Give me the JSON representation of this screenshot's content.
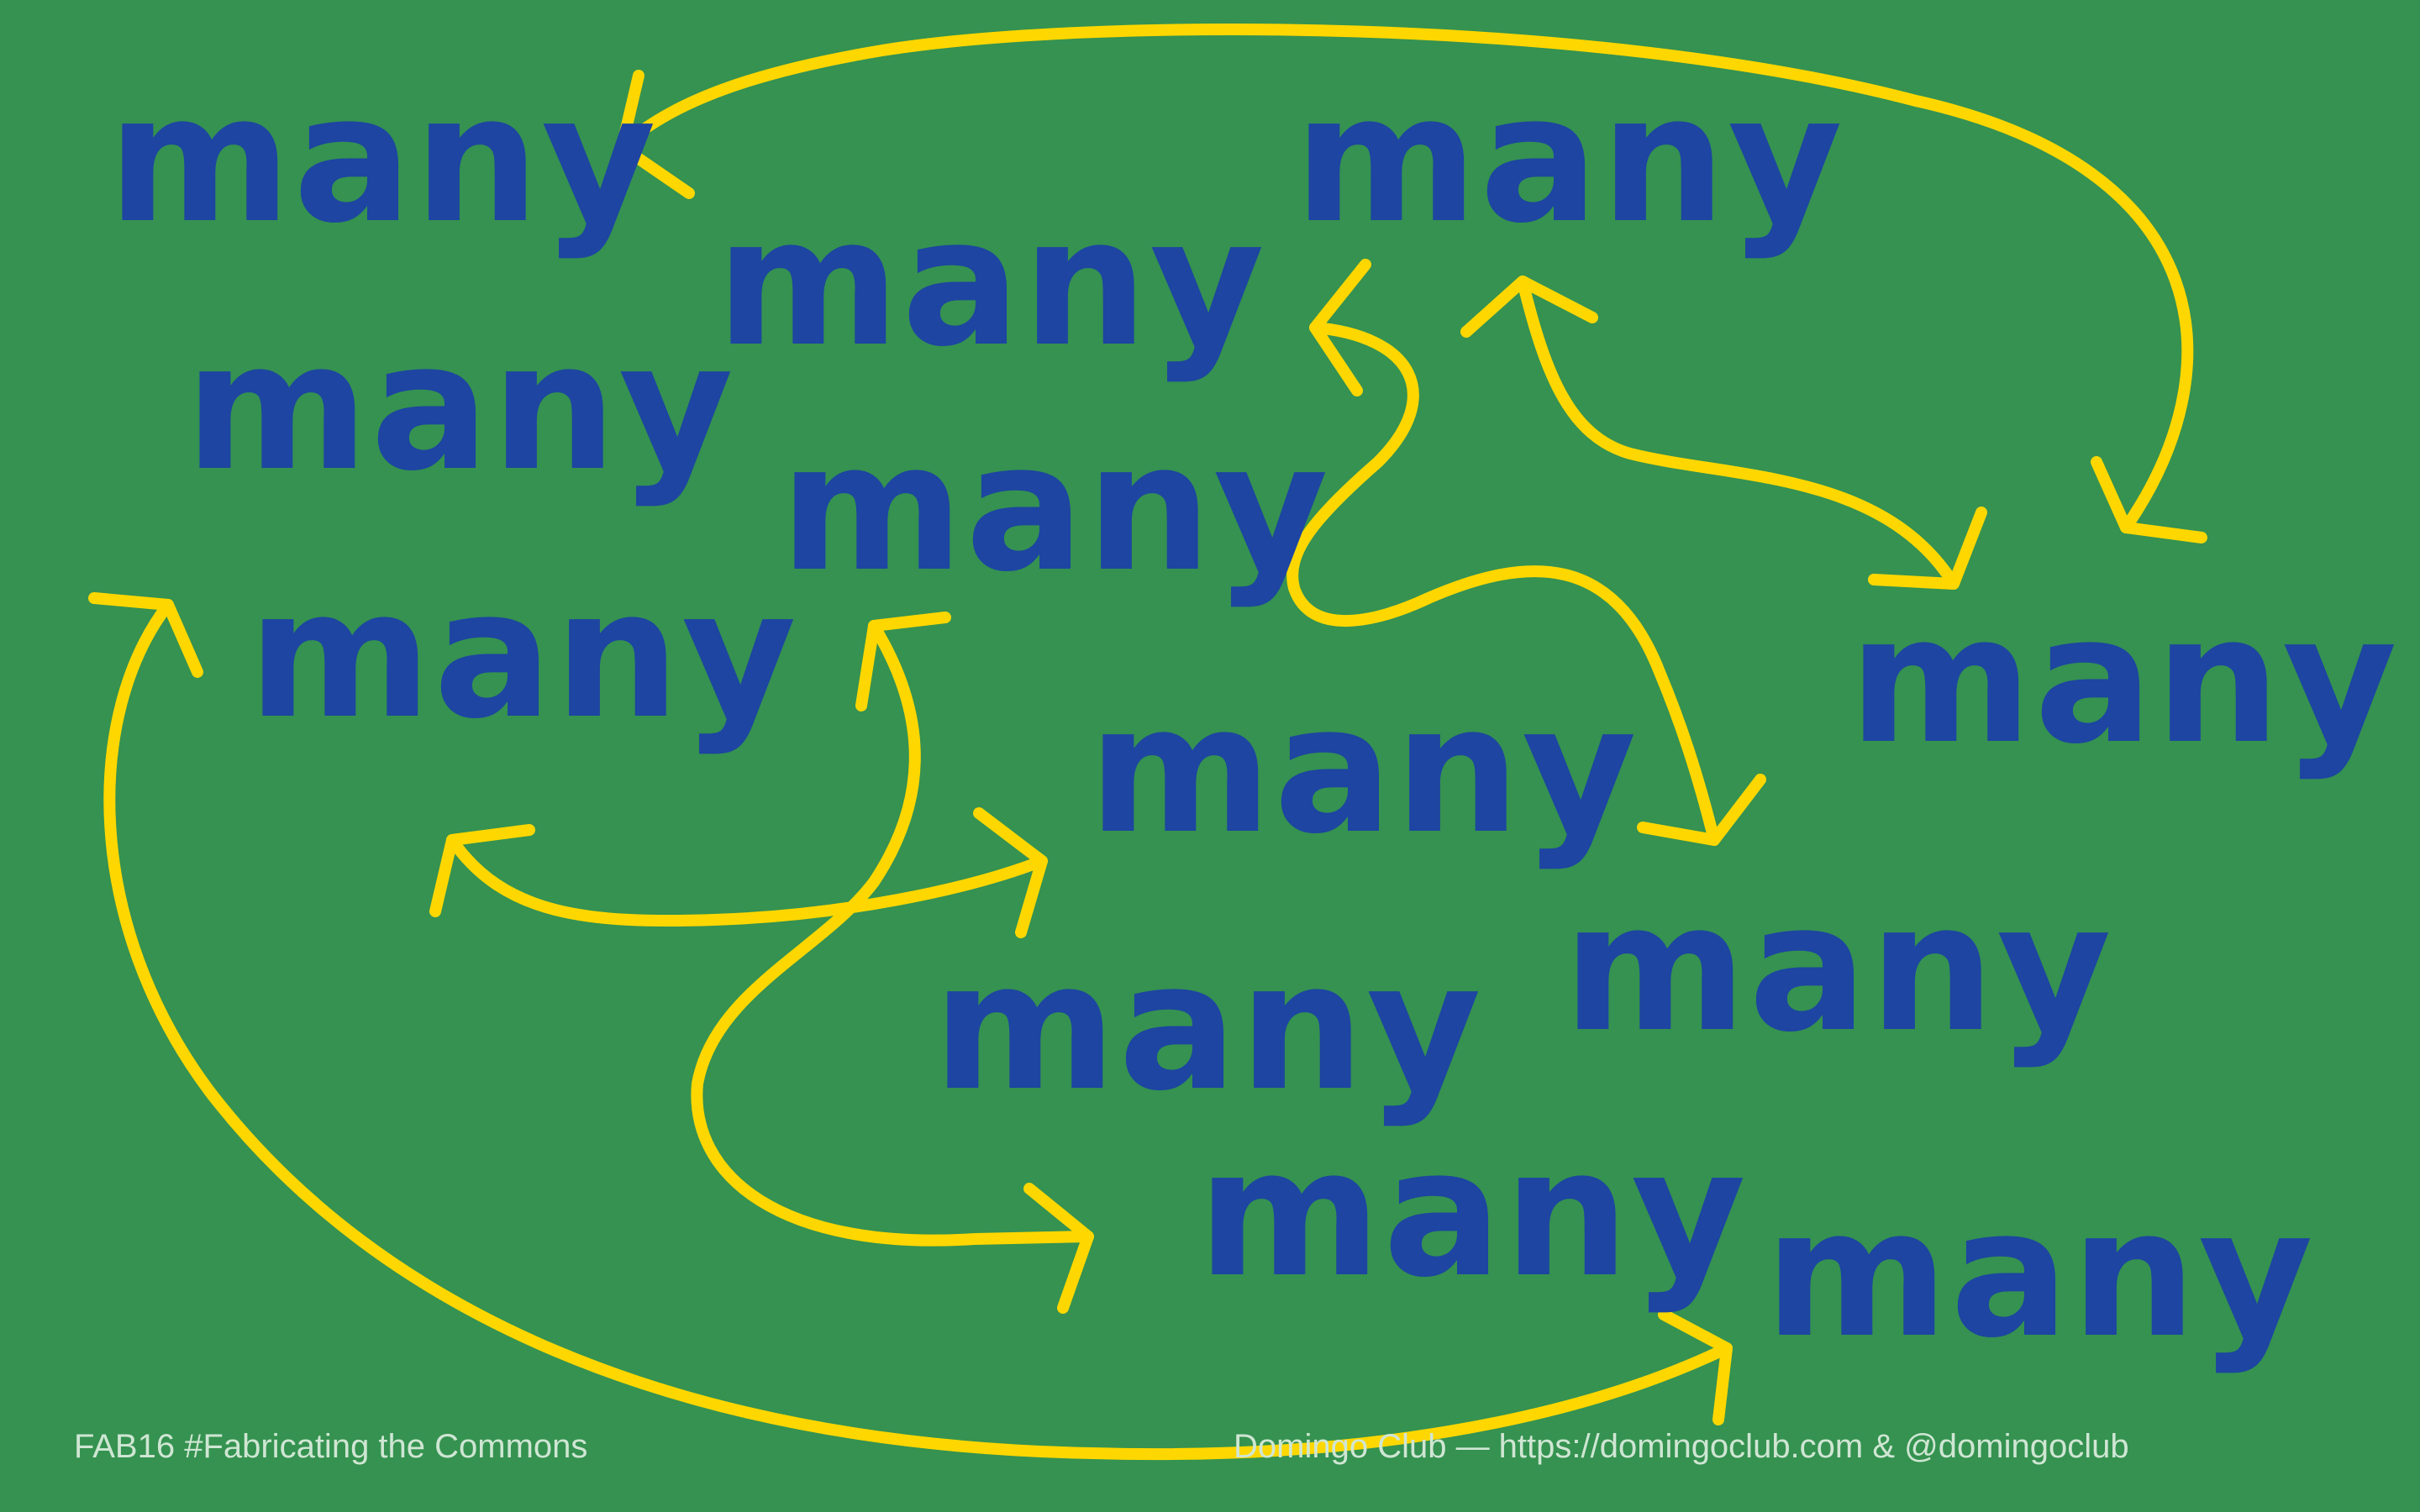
{
  "poster": {
    "word": "many",
    "colors": {
      "background": "#359250",
      "word": "#1d45a1",
      "arrow": "#ffd700",
      "footer_text": "#cfe6d3"
    }
  },
  "footer": {
    "left": "FAB16 #Fabricating the Commons",
    "right": "Domingo Club — https://domingoclub.com & @domingoclub"
  }
}
